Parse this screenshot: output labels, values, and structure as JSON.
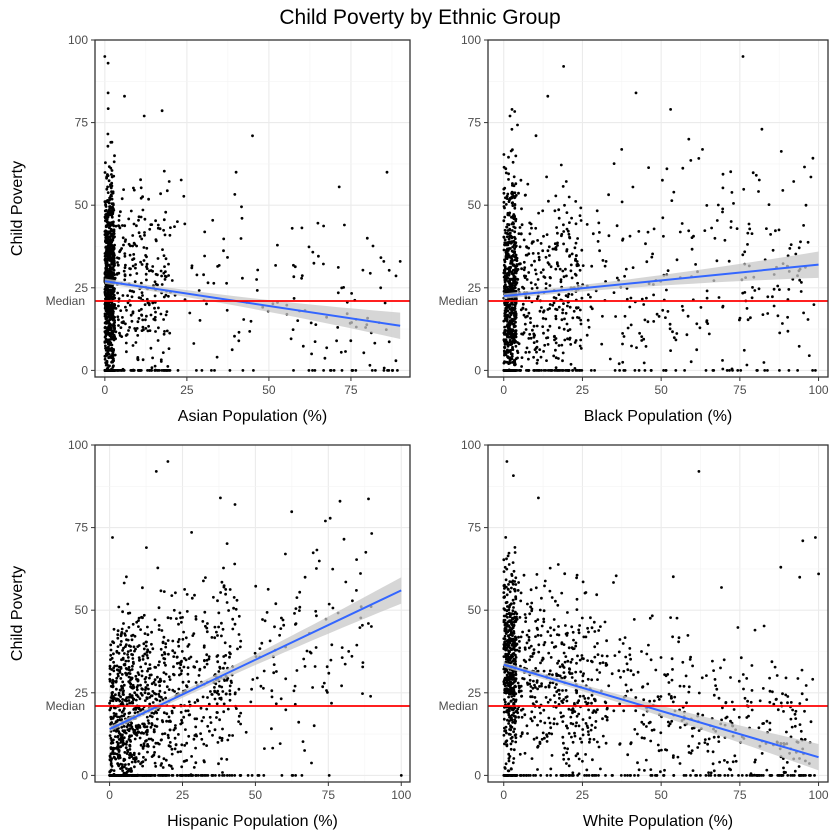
{
  "figure": {
    "title": "Child Poverty by Ethnic Group",
    "median_label": "Median",
    "median_value": 21
  },
  "colors": {
    "point": "#000000",
    "trend": "#3366FF",
    "ribbon": "#c8c8c8",
    "median": "#ff0000"
  },
  "chart_data": [
    {
      "type": "scatter",
      "xlabel": "Asian Population (%)",
      "ylabel": "Child Poverty",
      "xlim": [
        -3,
        93
      ],
      "ylim": [
        -2,
        100
      ],
      "xticks": [
        0,
        25,
        50,
        75
      ],
      "yticks": [
        0,
        25,
        50,
        75,
        100
      ],
      "median": 21,
      "trend": {
        "x_start": 0,
        "y_start": 27,
        "x_end": 90,
        "y_end": 13.5
      },
      "generator": {
        "kind": "asian",
        "n": 1300
      },
      "highlight_points": [
        [
          0,
          95
        ],
        [
          1,
          93
        ],
        [
          6,
          83
        ],
        [
          1,
          84
        ],
        [
          12,
          77
        ],
        [
          45,
          71
        ],
        [
          86,
          60
        ],
        [
          90,
          33
        ],
        [
          85,
          33
        ],
        [
          80,
          40
        ],
        [
          73,
          44
        ],
        [
          63,
          5
        ],
        [
          40,
          60
        ]
      ]
    },
    {
      "type": "scatter",
      "xlabel": "Black Population (%)",
      "ylabel": "",
      "xlim": [
        -5,
        103
      ],
      "ylim": [
        -2,
        100
      ],
      "xticks": [
        0,
        25,
        50,
        75,
        100
      ],
      "yticks": [
        0,
        25,
        50,
        75,
        100
      ],
      "median": 21,
      "trend": {
        "x_start": 0,
        "y_start": 22.5,
        "x_end": 100,
        "y_end": 32
      },
      "generator": {
        "kind": "black",
        "n": 1300
      },
      "highlight_points": [
        [
          76,
          95
        ],
        [
          19,
          92
        ],
        [
          42,
          84
        ],
        [
          14,
          83
        ],
        [
          53,
          79
        ],
        [
          82,
          73
        ],
        [
          96,
          50
        ],
        [
          99,
          0
        ],
        [
          2,
          77
        ]
      ]
    },
    {
      "type": "scatter",
      "xlabel": "Hispanic Population (%)",
      "ylabel": "Child Poverty",
      "xlim": [
        -5,
        103
      ],
      "ylim": [
        -2,
        100
      ],
      "xticks": [
        0,
        25,
        50,
        75,
        100
      ],
      "yticks": [
        0,
        25,
        50,
        75,
        100
      ],
      "median": 21,
      "trend": {
        "x_start": 0,
        "y_start": 14,
        "x_end": 100,
        "y_end": 56
      },
      "generator": {
        "kind": "hispanic",
        "n": 1400
      },
      "highlight_points": [
        [
          20,
          95
        ],
        [
          16,
          92
        ],
        [
          38,
          84
        ],
        [
          43,
          82
        ],
        [
          79,
          83
        ],
        [
          100,
          0
        ],
        [
          1,
          72
        ],
        [
          74,
          77
        ]
      ]
    },
    {
      "type": "scatter",
      "xlabel": "White Population (%)",
      "ylabel": "",
      "xlim": [
        -5,
        103
      ],
      "ylim": [
        -2,
        100
      ],
      "xticks": [
        0,
        25,
        50,
        75,
        100
      ],
      "yticks": [
        0,
        25,
        50,
        75,
        100
      ],
      "median": 21,
      "trend": {
        "x_start": 0,
        "y_start": 33.5,
        "x_end": 100,
        "y_end": 5.5
      },
      "generator": {
        "kind": "white",
        "n": 1400
      },
      "highlight_points": [
        [
          1,
          95
        ],
        [
          62,
          92
        ],
        [
          11,
          84
        ],
        [
          99,
          72
        ],
        [
          95,
          71
        ],
        [
          100,
          61
        ],
        [
          94,
          60
        ],
        [
          88,
          63
        ]
      ]
    }
  ]
}
